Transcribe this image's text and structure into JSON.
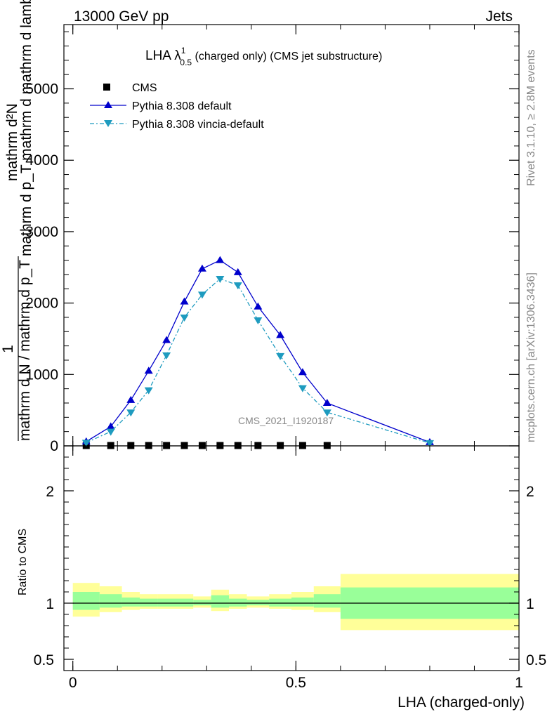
{
  "header": {
    "left": "13000 GeV pp",
    "right": "Jets"
  },
  "side": {
    "rivet": "Rivet 3.1.10, ≥ 2.8M events",
    "url": "mcplots.cern.ch [arXiv:1306.3436]"
  },
  "watermark": "CMS_2021_I1920187",
  "chart_data": [
    {
      "type": "line",
      "title": "LHA λ",
      "title_sup": "1",
      "title_sub": "0.5",
      "title_rest": " (charged only) (CMS jet substructure)",
      "ylabel_numerator": "mathrm d²N",
      "ylabel_denominator": "mathrm d p_T mathrm d mathrm d lambda",
      "ylabel_prefix": "1",
      "ylabel_prefix_den": "mathrm d N / mathrm d p_T",
      "ylim": [
        0,
        5900
      ],
      "yticks": [
        0,
        1000,
        2000,
        3000,
        4000,
        5000
      ],
      "ytick_labels": [
        "0",
        "1000",
        "2000",
        "3000",
        "4000",
        "5000"
      ],
      "xlim": [
        -0.02,
        1.0
      ],
      "legend_position": "top-left",
      "series": [
        {
          "name": "CMS",
          "color": "#000000",
          "marker": "square",
          "x": [
            0.03,
            0.085,
            0.13,
            0.17,
            0.21,
            0.25,
            0.29,
            0.33,
            0.37,
            0.415,
            0.465,
            0.515,
            0.57
          ],
          "values": [
            5,
            5,
            5,
            5,
            5,
            5,
            5,
            5,
            5,
            5,
            5,
            5,
            5
          ]
        },
        {
          "name": "Pythia 8.308 default",
          "color": "#0000cc",
          "marker": "triangle-up",
          "x": [
            0.03,
            0.085,
            0.13,
            0.17,
            0.21,
            0.25,
            0.29,
            0.33,
            0.37,
            0.415,
            0.465,
            0.515,
            0.57,
            0.8
          ],
          "values": [
            60,
            270,
            640,
            1050,
            1480,
            2020,
            2480,
            2600,
            2430,
            1950,
            1550,
            1030,
            600,
            50
          ]
        },
        {
          "name": "Pythia 8.308 vincia-default",
          "color": "#1e9bbf",
          "marker": "triangle-down",
          "x": [
            0.03,
            0.085,
            0.13,
            0.17,
            0.21,
            0.25,
            0.29,
            0.33,
            0.37,
            0.415,
            0.465,
            0.515,
            0.57,
            0.8
          ],
          "values": [
            45,
            200,
            470,
            780,
            1270,
            1800,
            2120,
            2340,
            2250,
            1760,
            1260,
            810,
            470,
            40
          ]
        }
      ]
    },
    {
      "type": "area",
      "ylabel": "Ratio to CMS",
      "xlabel": "LHA (charged-only)",
      "ylim": [
        0.4,
        2.4
      ],
      "yticks": [
        0.5,
        1,
        2
      ],
      "ytick_labels": [
        "0.5",
        "1",
        "2"
      ],
      "xlim": [
        -0.02,
        1.0
      ],
      "xticks": [
        0,
        0.5,
        1
      ],
      "xtick_labels": [
        "0",
        "0.5",
        "1"
      ],
      "reference_line": 1,
      "bins": [
        {
          "lo": 0.0,
          "hi": 0.06,
          "y_lo": 0.88,
          "y_hi": 1.18,
          "g_lo": 0.94,
          "g_hi": 1.1
        },
        {
          "lo": 0.06,
          "hi": 0.11,
          "y_lo": 0.92,
          "y_hi": 1.15,
          "g_lo": 0.96,
          "g_hi": 1.08
        },
        {
          "lo": 0.11,
          "hi": 0.15,
          "y_lo": 0.94,
          "y_hi": 1.1,
          "g_lo": 0.97,
          "g_hi": 1.05
        },
        {
          "lo": 0.15,
          "hi": 0.19,
          "y_lo": 0.95,
          "y_hi": 1.08,
          "g_lo": 0.97,
          "g_hi": 1.04
        },
        {
          "lo": 0.19,
          "hi": 0.27,
          "y_lo": 0.95,
          "y_hi": 1.08,
          "g_lo": 0.97,
          "g_hi": 1.04
        },
        {
          "lo": 0.27,
          "hi": 0.31,
          "y_lo": 0.96,
          "y_hi": 1.06,
          "g_lo": 0.98,
          "g_hi": 1.03
        },
        {
          "lo": 0.31,
          "hi": 0.35,
          "y_lo": 0.93,
          "y_hi": 1.12,
          "g_lo": 0.96,
          "g_hi": 1.07
        },
        {
          "lo": 0.35,
          "hi": 0.39,
          "y_lo": 0.95,
          "y_hi": 1.08,
          "g_lo": 0.97,
          "g_hi": 1.04
        },
        {
          "lo": 0.39,
          "hi": 0.44,
          "y_lo": 0.96,
          "y_hi": 1.06,
          "g_lo": 0.98,
          "g_hi": 1.03
        },
        {
          "lo": 0.44,
          "hi": 0.49,
          "y_lo": 0.95,
          "y_hi": 1.08,
          "g_lo": 0.97,
          "g_hi": 1.04
        },
        {
          "lo": 0.49,
          "hi": 0.54,
          "y_lo": 0.94,
          "y_hi": 1.1,
          "g_lo": 0.97,
          "g_hi": 1.05
        },
        {
          "lo": 0.54,
          "hi": 0.6,
          "y_lo": 0.92,
          "y_hi": 1.15,
          "g_lo": 0.96,
          "g_hi": 1.08
        },
        {
          "lo": 0.6,
          "hi": 1.0,
          "y_lo": 0.76,
          "y_hi": 1.26,
          "g_lo": 0.86,
          "g_hi": 1.14
        }
      ],
      "band_colors": {
        "outer": "#ffff99",
        "inner": "#99ff99"
      }
    }
  ]
}
